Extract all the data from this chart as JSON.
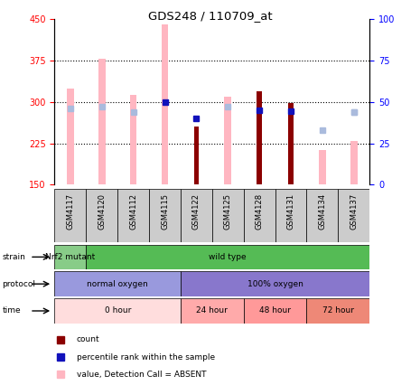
{
  "title": "GDS248 / 110709_at",
  "samples": [
    "GSM4117",
    "GSM4120",
    "GSM4112",
    "GSM4115",
    "GSM4122",
    "GSM4125",
    "GSM4128",
    "GSM4131",
    "GSM4134",
    "GSM4137"
  ],
  "ylim_left": [
    150,
    450
  ],
  "ylim_right": [
    0,
    100
  ],
  "yticks_left": [
    150,
    225,
    300,
    375,
    450
  ],
  "yticks_right": [
    0,
    25,
    50,
    75,
    100
  ],
  "value_absent": [
    325,
    378,
    313,
    440,
    null,
    310,
    null,
    null,
    213,
    230
  ],
  "rank_absent_pct": [
    46,
    47,
    44,
    null,
    null,
    47,
    null,
    null,
    null,
    44
  ],
  "count_value": [
    null,
    null,
    null,
    null,
    255,
    null,
    320,
    298,
    null,
    null
  ],
  "percentile_value": [
    null,
    null,
    null,
    300,
    270,
    null,
    285,
    283,
    null,
    null
  ],
  "rank_absent_pct2": [
    null,
    null,
    null,
    null,
    null,
    null,
    null,
    null,
    33,
    44
  ],
  "color_count": "#8B0000",
  "color_percentile": "#1111BB",
  "color_value_absent": "#FFB6C1",
  "color_rank_absent": "#AABBDD",
  "strain_groups": [
    {
      "label": "Nrf2 mutant",
      "start": 0,
      "end": 1,
      "color": "#88CC88"
    },
    {
      "label": "wild type",
      "start": 1,
      "end": 10,
      "color": "#55BB55"
    }
  ],
  "protocol_groups": [
    {
      "label": "normal oxygen",
      "start": 0,
      "end": 4,
      "color": "#9999DD"
    },
    {
      "label": "100% oxygen",
      "start": 4,
      "end": 10,
      "color": "#8877CC"
    }
  ],
  "time_groups": [
    {
      "label": "0 hour",
      "start": 0,
      "end": 4,
      "color": "#FFDDDD"
    },
    {
      "label": "24 hour",
      "start": 4,
      "end": 6,
      "color": "#FFAAAA"
    },
    {
      "label": "48 hour",
      "start": 6,
      "end": 8,
      "color": "#FF9999"
    },
    {
      "label": "72 hour",
      "start": 8,
      "end": 10,
      "color": "#EE8877"
    }
  ],
  "legend_labels": [
    "count",
    "percentile rank within the sample",
    "value, Detection Call = ABSENT",
    "rank, Detection Call = ABSENT"
  ],
  "legend_colors": [
    "#8B0000",
    "#1111BB",
    "#FFB6C1",
    "#AABBDD"
  ]
}
